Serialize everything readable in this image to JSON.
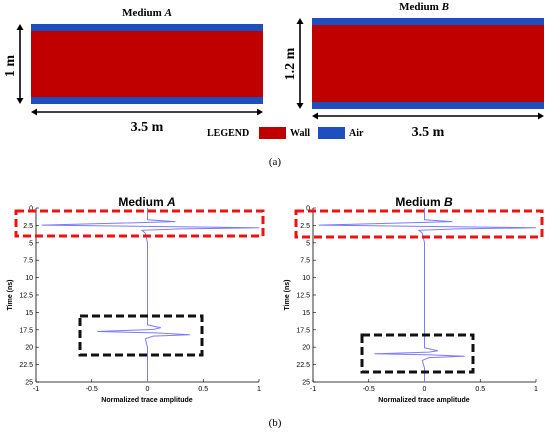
{
  "colors": {
    "wall": "#c00000",
    "air": "#1f4fbf",
    "trace": "#7b7bff",
    "red_box": "#ee1111",
    "black_box": "#111111"
  },
  "panel_a": {
    "medium_a_title": "Medium ",
    "medium_a_letter": "A",
    "medium_b_title": "Medium ",
    "medium_b_letter": "B",
    "dim_a_height": "1 m",
    "dim_b_height": "1.2 m",
    "dim_a_width": "3.5 m",
    "dim_b_width": "3.5 m",
    "legend_label": "LEGEND",
    "legend_wall": "Wall",
    "legend_air": "Air",
    "caption": "(a)"
  },
  "panel_b": {
    "caption": "(b)"
  },
  "chart_data": [
    {
      "type": "line",
      "title": "Medium A",
      "xlabel": "Normalized trace amplitude",
      "ylabel": "Time (ns)",
      "xlim": [
        -1,
        1
      ],
      "ylim": [
        25,
        0
      ],
      "x_ticks": [
        "-1",
        "-0.5",
        "0",
        "0.5",
        "1"
      ],
      "y_ticks": [
        "0",
        "2.5",
        "5",
        "7.5",
        "10",
        "12.5",
        "15",
        "17.5",
        "20",
        "22.5",
        "25"
      ],
      "series": [
        {
          "points": [
            [
              0,
              0
            ],
            [
              0,
              1.7
            ],
            [
              0.25,
              1.95
            ],
            [
              -0.3,
              2.2
            ],
            [
              -0.95,
              2.45
            ],
            [
              -0.2,
              2.6
            ],
            [
              0.55,
              2.75
            ],
            [
              1.0,
              2.85
            ],
            [
              0.3,
              3.0
            ],
            [
              -0.05,
              3.2
            ],
            [
              -0.02,
              3.6
            ],
            [
              0,
              5
            ],
            [
              0,
              16.8
            ],
            [
              0.12,
              17.2
            ],
            [
              0.05,
              17.45
            ],
            [
              -0.45,
              17.75
            ],
            [
              0.08,
              17.95
            ],
            [
              0.38,
              18.2
            ],
            [
              0.05,
              18.4
            ],
            [
              -0.02,
              18.8
            ],
            [
              0,
              20
            ],
            [
              0,
              25
            ]
          ]
        }
      ]
    },
    {
      "type": "line",
      "title": "Medium B",
      "xlabel": "Normalized trace amplitude",
      "ylabel": "Time (ns)",
      "xlim": [
        -1,
        1
      ],
      "ylim": [
        25,
        0
      ],
      "x_ticks": [
        "-1",
        "-0.5",
        "0",
        "0.5",
        "1"
      ],
      "y_ticks": [
        "0",
        "2.5",
        "5",
        "7.5",
        "10",
        "12.5",
        "15",
        "17.5",
        "20",
        "22.5",
        "25"
      ],
      "series": [
        {
          "points": [
            [
              0,
              0
            ],
            [
              0,
              1.7
            ],
            [
              0.25,
              1.95
            ],
            [
              -0.3,
              2.2
            ],
            [
              -0.95,
              2.45
            ],
            [
              -0.2,
              2.6
            ],
            [
              0.55,
              2.75
            ],
            [
              1.0,
              2.85
            ],
            [
              0.3,
              3.0
            ],
            [
              -0.05,
              3.2
            ],
            [
              -0.02,
              3.6
            ],
            [
              0,
              5
            ],
            [
              0,
              20.1
            ],
            [
              0.12,
              20.5
            ],
            [
              0.04,
              20.7
            ],
            [
              -0.45,
              20.95
            ],
            [
              0.06,
              21.1
            ],
            [
              0.36,
              21.3
            ],
            [
              0.04,
              21.5
            ],
            [
              -0.02,
              21.9
            ],
            [
              0,
              23
            ],
            [
              0,
              25
            ]
          ]
        }
      ]
    }
  ]
}
